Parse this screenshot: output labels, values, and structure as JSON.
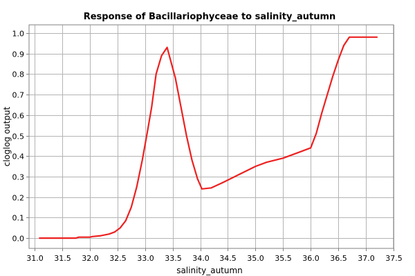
{
  "chart_data": {
    "type": "line",
    "title": "Response of Bacillariophyceae to salinity_autumn",
    "xlabel": "salinity_autumn",
    "ylabel": "cloglog output",
    "xlim": [
      30.9,
      37.5
    ],
    "ylim": [
      -0.05,
      1.04
    ],
    "xticks": [
      "31.0",
      "31.5",
      "32.0",
      "32.5",
      "33.0",
      "33.5",
      "34.0",
      "34.5",
      "35.0",
      "35.5",
      "36.0",
      "36.5",
      "37.0",
      "37.5"
    ],
    "yticks": [
      "0.0",
      "0.1",
      "0.2",
      "0.3",
      "0.4",
      "0.5",
      "0.6",
      "0.7",
      "0.8",
      "0.9",
      "1.0"
    ],
    "grid": true,
    "line_color": "#ee2020",
    "series": [
      {
        "x": [
          31.09,
          31.4,
          31.75,
          31.8,
          32.0,
          32.05,
          32.2,
          32.35,
          32.45,
          32.55,
          32.65,
          32.75,
          32.85,
          32.95,
          33.05,
          33.12,
          33.2,
          33.3,
          33.4,
          33.45,
          33.55,
          33.65,
          33.75,
          33.85,
          33.95,
          34.03,
          34.2,
          34.4,
          34.7,
          35.0,
          35.2,
          35.5,
          35.8,
          36.0,
          36.1,
          36.2,
          36.3,
          36.4,
          36.5,
          36.6,
          36.7,
          36.8,
          37.2
        ],
        "y": [
          0.0,
          0.0,
          0.0,
          0.005,
          0.005,
          0.008,
          0.012,
          0.02,
          0.03,
          0.05,
          0.085,
          0.15,
          0.25,
          0.38,
          0.53,
          0.64,
          0.8,
          0.89,
          0.93,
          0.88,
          0.78,
          0.64,
          0.5,
          0.38,
          0.29,
          0.24,
          0.245,
          0.27,
          0.31,
          0.35,
          0.37,
          0.39,
          0.42,
          0.44,
          0.51,
          0.61,
          0.7,
          0.79,
          0.87,
          0.94,
          0.98,
          0.98,
          0.98
        ]
      }
    ]
  }
}
